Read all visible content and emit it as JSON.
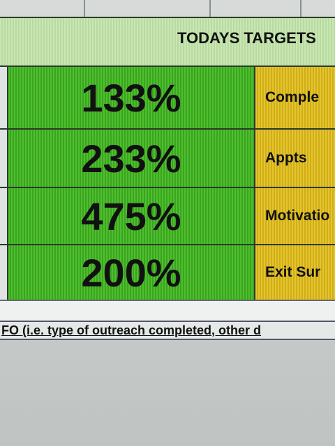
{
  "header": {
    "title": "TODAYS TARGETS"
  },
  "table": {
    "rows": [
      [
        "133%",
        "Comple"
      ],
      [
        "233%",
        "Appts"
      ],
      [
        "475%",
        "Motivatio"
      ],
      [
        "200%",
        "Exit Sur"
      ]
    ]
  },
  "note": "FO (i.e. type of outreach completed, other d"
}
